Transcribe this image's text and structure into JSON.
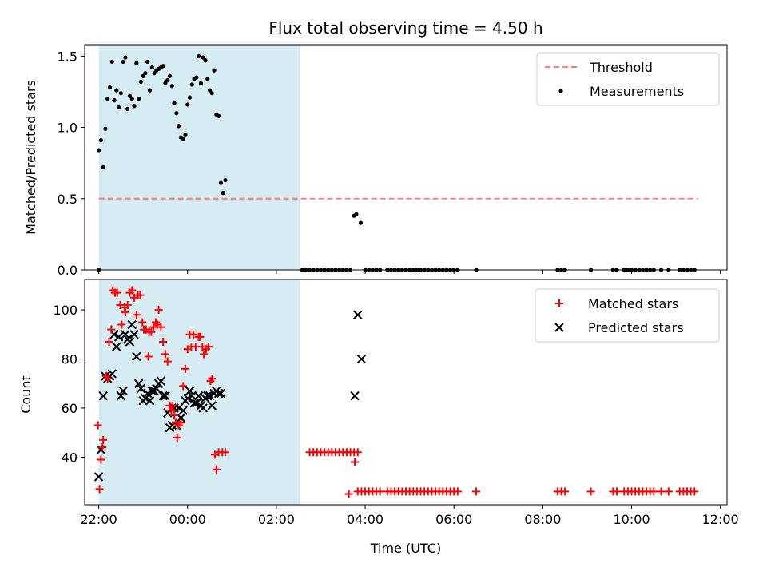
{
  "chart_data": [
    {
      "type": "scatter",
      "title": "Flux total observing time = 4.50 h",
      "xlabel": "",
      "ylabel": "Matched/Predicted stars",
      "ylim": [
        0,
        1.58
      ],
      "xlim": [
        "21:41",
        "12:09"
      ],
      "x_unit": "hours since 00:00 UTC (previous day negative)",
      "x_ticks": [
        "22:00",
        "00:00",
        "02:00",
        "04:00",
        "06:00",
        "08:00",
        "10:00",
        "12:00"
      ],
      "y_ticks": [
        "0.0",
        "0.5",
        "1.0",
        "1.5"
      ],
      "shaded_interval": [
        "22:00",
        "02:32"
      ],
      "shade_color": "#add8e6",
      "legend": {
        "position": "top-right",
        "entries": [
          "Threshold",
          "Measurements"
        ]
      },
      "threshold": {
        "name": "Threshold",
        "value": 0.5,
        "x_range": [
          "22:00",
          "11:30"
        ],
        "color": "#ff7f7f"
      },
      "measurements": {
        "name": "Measurements",
        "color": "#000000",
        "points": [
          [
            "22:00",
            0.84
          ],
          [
            "22:03",
            0.91
          ],
          [
            "22:06",
            0.72
          ],
          [
            "22:09",
            0.99
          ],
          [
            "22:12",
            1.2
          ],
          [
            "22:15",
            1.28
          ],
          [
            "22:18",
            1.46
          ],
          [
            "22:21",
            1.19
          ],
          [
            "22:24",
            1.26
          ],
          [
            "22:27",
            1.14
          ],
          [
            "22:30",
            1.24
          ],
          [
            "22:33",
            1.46
          ],
          [
            "22:36",
            1.49
          ],
          [
            "22:39",
            1.13
          ],
          [
            "22:42",
            1.22
          ],
          [
            "22:45",
            1.2
          ],
          [
            "22:48",
            1.15
          ],
          [
            "22:51",
            1.45
          ],
          [
            "22:54",
            1.2
          ],
          [
            "22:57",
            1.32
          ],
          [
            "23:00",
            1.36
          ],
          [
            "23:03",
            1.38
          ],
          [
            "23:06",
            1.46
          ],
          [
            "23:09",
            1.26
          ],
          [
            "23:12",
            1.42
          ],
          [
            "23:15",
            1.38
          ],
          [
            "23:18",
            1.4
          ],
          [
            "23:21",
            1.41
          ],
          [
            "23:24",
            1.42
          ],
          [
            "23:27",
            1.43
          ],
          [
            "23:30",
            1.31
          ],
          [
            "23:33",
            1.33
          ],
          [
            "23:36",
            1.36
          ],
          [
            "23:39",
            1.29
          ],
          [
            "23:42",
            1.17
          ],
          [
            "23:45",
            1.1
          ],
          [
            "23:48",
            1.01
          ],
          [
            "23:51",
            0.93
          ],
          [
            "23:54",
            0.92
          ],
          [
            "23:57",
            0.95
          ],
          [
            "00:00",
            1.16
          ],
          [
            "00:03",
            1.21
          ],
          [
            "00:06",
            1.3
          ],
          [
            "00:09",
            1.34
          ],
          [
            "00:12",
            1.35
          ],
          [
            "00:15",
            1.5
          ],
          [
            "00:18",
            1.31
          ],
          [
            "00:21",
            1.49
          ],
          [
            "00:24",
            1.47
          ],
          [
            "00:27",
            1.34
          ],
          [
            "00:30",
            1.26
          ],
          [
            "00:33",
            1.24
          ],
          [
            "00:36",
            1.4
          ],
          [
            "00:39",
            1.09
          ],
          [
            "00:42",
            1.08
          ],
          [
            "00:45",
            0.61
          ],
          [
            "00:48",
            0.54
          ],
          [
            "00:51",
            0.63
          ],
          [
            "03:45",
            0.38
          ],
          [
            "03:48",
            0.39
          ],
          [
            "03:54",
            0.33
          ],
          [
            "22:00",
            0.0
          ]
        ],
        "zero_points": [
          "02:35",
          "02:40",
          "02:45",
          "02:50",
          "02:55",
          "03:00",
          "03:05",
          "03:10",
          "03:15",
          "03:20",
          "03:25",
          "03:30",
          "03:35",
          "03:40",
          "04:00",
          "04:05",
          "04:10",
          "04:15",
          "04:20",
          "04:30",
          "04:35",
          "04:40",
          "04:45",
          "04:50",
          "04:55",
          "05:00",
          "05:05",
          "05:10",
          "05:15",
          "05:20",
          "05:25",
          "05:30",
          "05:35",
          "05:40",
          "05:45",
          "05:50",
          "05:55",
          "06:00",
          "06:05",
          "06:30",
          "08:20",
          "08:25",
          "08:30",
          "09:05",
          "09:35",
          "09:40",
          "09:50",
          "09:55",
          "10:00",
          "10:05",
          "10:10",
          "10:15",
          "10:20",
          "10:25",
          "10:30",
          "10:40",
          "10:50",
          "11:05",
          "11:10",
          "11:15",
          "11:20",
          "11:25"
        ]
      }
    },
    {
      "type": "scatter",
      "title": "",
      "xlabel": "Time (UTC)",
      "ylabel": "Count",
      "ylim": [
        20.6,
        112.4
      ],
      "xlim": [
        "21:41",
        "12:09"
      ],
      "x_ticks": [
        "22:00",
        "00:00",
        "02:00",
        "04:00",
        "06:00",
        "08:00",
        "10:00",
        "12:00"
      ],
      "y_ticks": [
        "40",
        "60",
        "80",
        "100"
      ],
      "shaded_interval": [
        "22:00",
        "02:32"
      ],
      "shade_color": "#add8e6",
      "legend": {
        "position": "top-right",
        "entries": [
          "Matched stars",
          "Predicted stars"
        ]
      },
      "series": [
        {
          "name": "Matched stars",
          "marker": "+",
          "color": "#ff0000",
          "points": [
            [
              "21:59",
              53
            ],
            [
              "22:01",
              27
            ],
            [
              "22:03",
              39
            ],
            [
              "22:05",
              44
            ],
            [
              "22:06",
              47
            ],
            [
              "22:10",
              73
            ],
            [
              "22:12",
              72
            ],
            [
              "22:14",
              87
            ],
            [
              "22:17",
              92
            ],
            [
              "22:19",
              108
            ],
            [
              "22:22",
              107
            ],
            [
              "22:25",
              107
            ],
            [
              "22:29",
              102
            ],
            [
              "22:31",
              94
            ],
            [
              "22:35",
              101
            ],
            [
              "22:36",
              99
            ],
            [
              "22:39",
              102
            ],
            [
              "22:42",
              107
            ],
            [
              "22:45",
              108
            ],
            [
              "22:48",
              105
            ],
            [
              "22:51",
              98
            ],
            [
              "22:53",
              106
            ],
            [
              "22:56",
              106
            ],
            [
              "22:59",
              95
            ],
            [
              "23:01",
              92
            ],
            [
              "23:04",
              92
            ],
            [
              "23:07",
              81
            ],
            [
              "23:08",
              91
            ],
            [
              "23:11",
              91
            ],
            [
              "23:14",
              93
            ],
            [
              "23:17",
              95
            ],
            [
              "23:19",
              94
            ],
            [
              "23:21",
              100
            ],
            [
              "23:24",
              93
            ],
            [
              "23:27",
              87
            ],
            [
              "23:30",
              82
            ],
            [
              "23:33",
              79
            ],
            [
              "23:36",
              61
            ],
            [
              "23:38",
              59
            ],
            [
              "23:40",
              61
            ],
            [
              "23:42",
              57
            ],
            [
              "23:44",
              54
            ],
            [
              "23:46",
              48
            ],
            [
              "23:48",
              53
            ],
            [
              "23:51",
              54
            ],
            [
              "23:54",
              69
            ],
            [
              "23:57",
              76
            ],
            [
              "00:00",
              84
            ],
            [
              "00:03",
              90
            ],
            [
              "00:05",
              85
            ],
            [
              "00:08",
              90
            ],
            [
              "00:11",
              85
            ],
            [
              "00:15",
              89
            ],
            [
              "00:17",
              89
            ],
            [
              "00:20",
              85
            ],
            [
              "00:22",
              82
            ],
            [
              "00:25",
              84
            ],
            [
              "00:28",
              85
            ],
            [
              "00:31",
              71
            ],
            [
              "00:33",
              72
            ],
            [
              "00:37",
              41
            ],
            [
              "00:39",
              35
            ],
            [
              "00:42",
              42
            ],
            [
              "00:47",
              42
            ],
            [
              "00:51",
              42
            ],
            [
              "03:46",
              38
            ],
            [
              "03:38",
              25
            ]
          ],
          "flat_points": {
            "y_value": 42,
            "times": [
              "02:45",
              "02:50",
              "02:55",
              "03:00",
              "03:05",
              "03:10",
              "03:15",
              "03:20",
              "03:25",
              "03:30",
              "03:35",
              "03:40",
              "03:45",
              "03:50"
            ]
          },
          "baseline_points": {
            "y_value": 26,
            "times": [
              "03:50",
              "03:55",
              "04:00",
              "04:05",
              "04:10",
              "04:15",
              "04:20",
              "04:30",
              "04:35",
              "04:40",
              "04:45",
              "04:50",
              "04:55",
              "05:00",
              "05:05",
              "05:10",
              "05:15",
              "05:20",
              "05:25",
              "05:30",
              "05:35",
              "05:40",
              "05:45",
              "05:50",
              "05:55",
              "06:00",
              "06:05",
              "06:30",
              "08:20",
              "08:25",
              "08:30",
              "09:05",
              "09:35",
              "09:40",
              "09:50",
              "09:55",
              "10:00",
              "10:05",
              "10:10",
              "10:15",
              "10:20",
              "10:25",
              "10:30",
              "10:40",
              "10:50",
              "11:05",
              "11:10",
              "11:15",
              "11:20",
              "11:25"
            ]
          }
        },
        {
          "name": "Predicted stars",
          "marker": "x",
          "color": "#000000",
          "points": [
            [
              "22:00",
              32
            ],
            [
              "22:03",
              43
            ],
            [
              "22:06",
              65
            ],
            [
              "22:09",
              73
            ],
            [
              "22:12",
              72
            ],
            [
              "22:15",
              73
            ],
            [
              "22:18",
              74
            ],
            [
              "22:21",
              90
            ],
            [
              "22:24",
              85
            ],
            [
              "22:27",
              89
            ],
            [
              "22:30",
              65
            ],
            [
              "22:33",
              67
            ],
            [
              "22:36",
              90
            ],
            [
              "22:39",
              88
            ],
            [
              "22:42",
              87
            ],
            [
              "22:45",
              94
            ],
            [
              "22:48",
              90
            ],
            [
              "22:51",
              81
            ],
            [
              "22:54",
              70
            ],
            [
              "22:57",
              68
            ],
            [
              "23:00",
              63
            ],
            [
              "23:03",
              64
            ],
            [
              "23:06",
              66
            ],
            [
              "23:09",
              63
            ],
            [
              "23:12",
              67
            ],
            [
              "23:15",
              67
            ],
            [
              "23:18",
              68
            ],
            [
              "23:21",
              70
            ],
            [
              "23:24",
              71
            ],
            [
              "23:27",
              65
            ],
            [
              "23:30",
              65
            ],
            [
              "23:33",
              58
            ],
            [
              "23:36",
              52
            ],
            [
              "23:39",
              53
            ],
            [
              "23:42",
              60
            ],
            [
              "23:45",
              53
            ],
            [
              "23:48",
              60
            ],
            [
              "23:51",
              56
            ],
            [
              "23:54",
              59
            ],
            [
              "23:57",
              63
            ],
            [
              "00:00",
              64
            ],
            [
              "00:03",
              67
            ],
            [
              "00:06",
              65
            ],
            [
              "00:09",
              62
            ],
            [
              "00:12",
              62
            ],
            [
              "00:15",
              65
            ],
            [
              "00:18",
              61
            ],
            [
              "00:21",
              60
            ],
            [
              "00:24",
              64
            ],
            [
              "00:27",
              65
            ],
            [
              "00:30",
              65
            ],
            [
              "00:33",
              61
            ],
            [
              "00:36",
              66
            ],
            [
              "00:39",
              67
            ],
            [
              "00:42",
              66
            ],
            [
              "00:45",
              66
            ],
            [
              "03:46",
              65
            ],
            [
              "03:50",
              98
            ],
            [
              "03:55",
              80
            ]
          ]
        }
      ]
    }
  ]
}
